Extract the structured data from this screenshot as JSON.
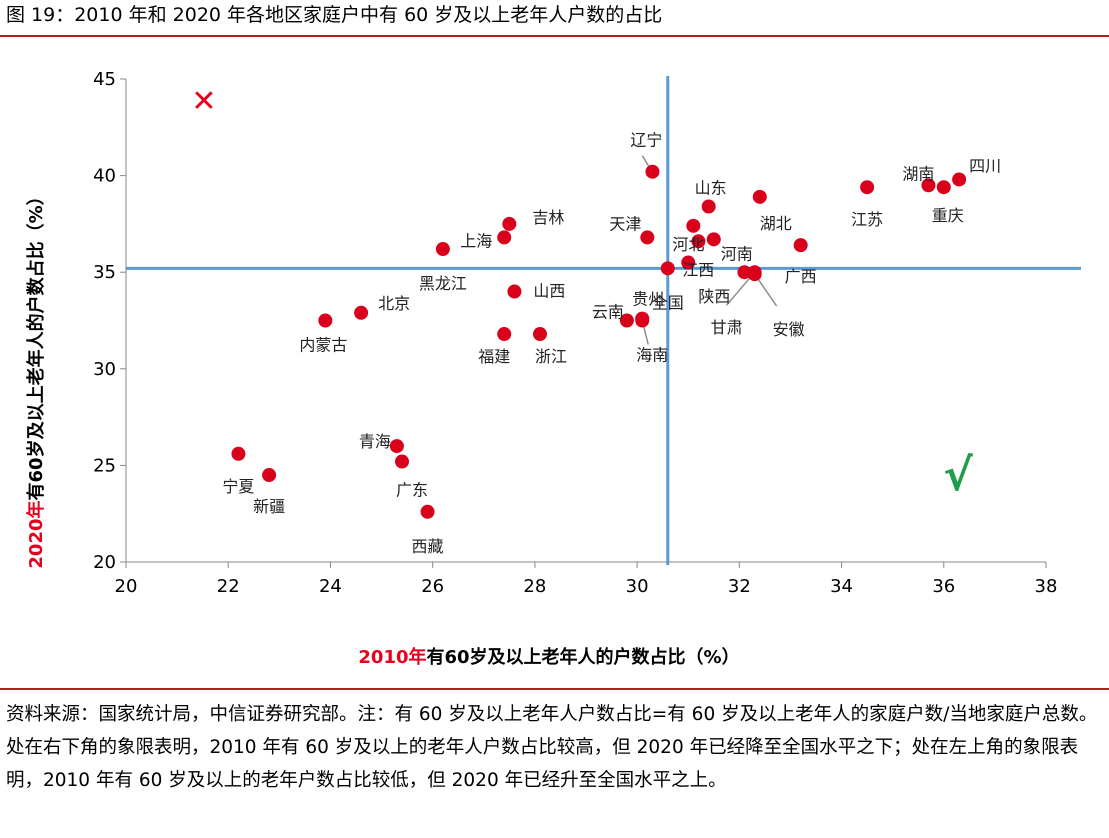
{
  "title": "图 19：2010 年和 2020 年各地区家庭户中有 60 岁及以上老年人户数的占比",
  "note": "资料来源：国家统计局，中信证券研究部。注：有 60 岁及以上老年人户数占比=有 60 岁及以上老年人的家庭户数/当地家庭户总数。处在右下角的象限表明，2010 年有 60 岁及以上的老年人户数占比较高，但 2020 年已经降至全国水平之下；处在左上角的象限表明，2010 年有 60 岁及以上的老年户数占比较低，但 2020 年已经升至全国水平之上。",
  "colors": {
    "point": "#d9001b",
    "quadrant_line": "#5b9bd5",
    "accent_red": "#e8001c",
    "check_green": "#1e9e4a",
    "rule": "#b41e1e"
  },
  "chart_data": {
    "type": "scatter",
    "xlabel": {
      "year": "2010年",
      "text": "有60岁及以上老年人的户数占比（%）"
    },
    "ylabel": {
      "year": "2020年",
      "text": "有60岁及以上老年人的户数占比（%）"
    },
    "xlim": [
      20,
      38
    ],
    "ylim": [
      20,
      45
    ],
    "xticks": [
      20,
      22,
      24,
      26,
      28,
      30,
      32,
      34,
      36,
      38
    ],
    "yticks": [
      20,
      25,
      30,
      35,
      40,
      45
    ],
    "grid": false,
    "reference_lines": {
      "x": 30.6,
      "y": 35.2
    },
    "markers": {
      "cross": "✕",
      "check": "√"
    },
    "points": [
      {
        "name": "辽宁",
        "x": 30.3,
        "y": 40.2
      },
      {
        "name": "四川",
        "x": 36.3,
        "y": 39.8
      },
      {
        "name": "湖南",
        "x": 35.7,
        "y": 39.5
      },
      {
        "name": "重庆",
        "x": 36.0,
        "y": 39.4
      },
      {
        "name": "江苏",
        "x": 34.5,
        "y": 39.4
      },
      {
        "name": "湖北",
        "x": 32.4,
        "y": 38.9
      },
      {
        "name": "山东",
        "x": 31.4,
        "y": 38.4
      },
      {
        "name": "河北",
        "x": 31.1,
        "y": 37.4
      },
      {
        "name": "吉林",
        "x": 27.5,
        "y": 37.5
      },
      {
        "name": "天津",
        "x": 30.2,
        "y": 36.8
      },
      {
        "name": "上海",
        "x": 27.4,
        "y": 36.8
      },
      {
        "name": "河南",
        "x": 31.5,
        "y": 36.7
      },
      {
        "name": "",
        "x": 31.2,
        "y": 36.6
      },
      {
        "name": "广西",
        "x": 33.2,
        "y": 36.4
      },
      {
        "name": "黑龙江",
        "x": 26.2,
        "y": 36.2
      },
      {
        "name": "江西",
        "x": 31.0,
        "y": 35.5
      },
      {
        "name": "全国",
        "x": 30.6,
        "y": 35.2
      },
      {
        "name": "甘肃",
        "x": 32.3,
        "y": 35.0
      },
      {
        "name": "安徽",
        "x": 32.3,
        "y": 34.9
      },
      {
        "name": "陕西",
        "x": 32.1,
        "y": 35.0
      },
      {
        "name": "山西",
        "x": 27.6,
        "y": 34.0
      },
      {
        "name": "北京",
        "x": 24.6,
        "y": 32.9
      },
      {
        "name": "内蒙古",
        "x": 23.9,
        "y": 32.5
      },
      {
        "name": "贵州",
        "x": 30.1,
        "y": 32.6
      },
      {
        "name": "云南",
        "x": 29.8,
        "y": 32.5
      },
      {
        "name": "海南",
        "x": 30.1,
        "y": 32.5
      },
      {
        "name": "福建",
        "x": 27.4,
        "y": 31.8
      },
      {
        "name": "浙江",
        "x": 28.1,
        "y": 31.8
      },
      {
        "name": "青海",
        "x": 25.3,
        "y": 26.0
      },
      {
        "name": "宁夏",
        "x": 22.2,
        "y": 25.6
      },
      {
        "name": "广东",
        "x": 25.4,
        "y": 25.2
      },
      {
        "name": "新疆",
        "x": 22.8,
        "y": 24.5
      },
      {
        "name": "西藏",
        "x": 25.9,
        "y": 22.6
      }
    ]
  }
}
